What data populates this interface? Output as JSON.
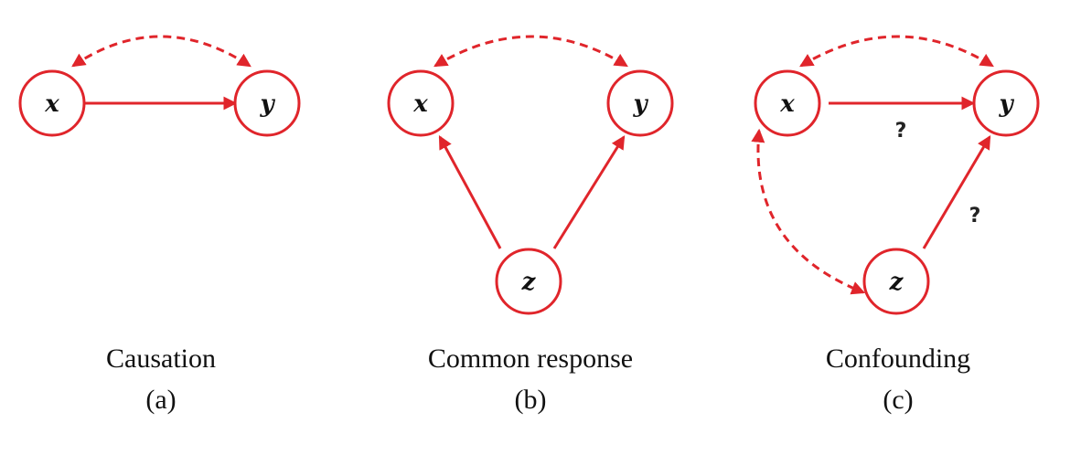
{
  "colors": {
    "accent": "#e0252b",
    "text": "#111111",
    "question": "#222222"
  },
  "panels": [
    {
      "id": "a",
      "caption": "Causation",
      "sublabel": "(a)",
      "nodes": [
        {
          "id": "x",
          "label": "x"
        },
        {
          "id": "y",
          "label": "y"
        }
      ],
      "edges": [
        {
          "from": "x",
          "to": "y",
          "style": "solid",
          "direction": "forward",
          "label": ""
        },
        {
          "from": "x",
          "to": "y",
          "style": "dashed",
          "direction": "both",
          "curved": true,
          "label": ""
        }
      ]
    },
    {
      "id": "b",
      "caption": "Common response",
      "sublabel": "(b)",
      "nodes": [
        {
          "id": "x",
          "label": "x"
        },
        {
          "id": "y",
          "label": "y"
        },
        {
          "id": "z",
          "label": "z"
        }
      ],
      "edges": [
        {
          "from": "z",
          "to": "x",
          "style": "solid",
          "direction": "forward",
          "label": ""
        },
        {
          "from": "z",
          "to": "y",
          "style": "solid",
          "direction": "forward",
          "label": ""
        },
        {
          "from": "x",
          "to": "y",
          "style": "dashed",
          "direction": "both",
          "curved": true,
          "label": ""
        }
      ]
    },
    {
      "id": "c",
      "caption": "Confounding",
      "sublabel": "(c)",
      "nodes": [
        {
          "id": "x",
          "label": "x"
        },
        {
          "id": "y",
          "label": "y"
        },
        {
          "id": "z",
          "label": "z"
        }
      ],
      "edges": [
        {
          "from": "x",
          "to": "y",
          "style": "solid",
          "direction": "forward",
          "label": "?"
        },
        {
          "from": "z",
          "to": "y",
          "style": "solid",
          "direction": "forward",
          "label": "?"
        },
        {
          "from": "x",
          "to": "y",
          "style": "dashed",
          "direction": "both",
          "curved": true,
          "label": ""
        },
        {
          "from": "x",
          "to": "z",
          "style": "dashed",
          "direction": "both",
          "curved": true,
          "label": ""
        }
      ]
    }
  ]
}
